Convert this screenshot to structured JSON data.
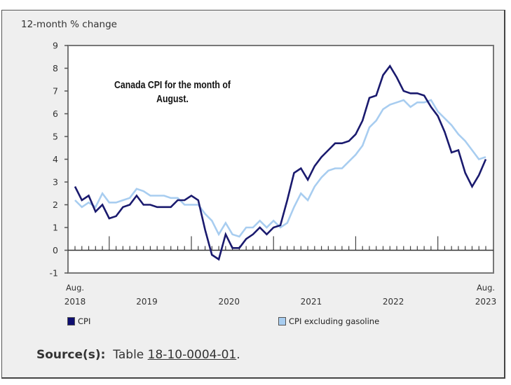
{
  "chart_data": {
    "type": "line",
    "title": "Canada CPI for the month of August.",
    "ylabel": "12-month % change",
    "xlabel": "",
    "ylim": [
      -1,
      9
    ],
    "yticks": [
      -1,
      0,
      1,
      2,
      3,
      4,
      5,
      6,
      7,
      8,
      9
    ],
    "grid": false,
    "legend_position": "bottom",
    "x_start": "Aug. 2018",
    "x_end": "Aug. 2023",
    "x_tick_labels": [
      {
        "month_index": 0,
        "line1": "Aug.",
        "line2": "2018"
      },
      {
        "month_index": 10.5,
        "line1": "",
        "line2": "2019"
      },
      {
        "month_index": 22.5,
        "line1": "",
        "line2": "2020"
      },
      {
        "month_index": 34.5,
        "line1": "",
        "line2": "2021"
      },
      {
        "month_index": 46.5,
        "line1": "",
        "line2": "2022"
      },
      {
        "month_index": 60,
        "line1": "Aug.",
        "line2": "2023"
      }
    ],
    "major_tick_month_indices": [
      5,
      17,
      29,
      41,
      53
    ],
    "series": [
      {
        "name": "CPI",
        "color": "#1a1a6e",
        "values": [
          2.8,
          2.2,
          2.4,
          1.7,
          2.0,
          1.4,
          1.5,
          1.9,
          2.0,
          2.4,
          2.0,
          2.0,
          1.9,
          1.9,
          1.9,
          2.2,
          2.2,
          2.4,
          2.2,
          0.9,
          -0.2,
          -0.4,
          0.7,
          0.1,
          0.1,
          0.5,
          0.7,
          1.0,
          0.7,
          1.0,
          1.1,
          2.2,
          3.4,
          3.6,
          3.1,
          3.7,
          4.1,
          4.4,
          4.7,
          4.7,
          4.8,
          5.1,
          5.7,
          6.7,
          6.8,
          7.7,
          8.1,
          7.6,
          7.0,
          6.9,
          6.9,
          6.8,
          6.3,
          5.9,
          5.2,
          4.3,
          4.4,
          3.4,
          2.8,
          3.3,
          4.0
        ]
      },
      {
        "name": "CPI excluding gasoline",
        "color": "#a8cdf0",
        "values": [
          2.2,
          1.9,
          2.1,
          1.9,
          2.5,
          2.1,
          2.1,
          2.2,
          2.3,
          2.7,
          2.6,
          2.4,
          2.4,
          2.4,
          2.3,
          2.3,
          2.0,
          2.0,
          2.0,
          1.6,
          1.3,
          0.7,
          1.2,
          0.7,
          0.6,
          1.0,
          1.0,
          1.3,
          1.0,
          1.3,
          1.0,
          1.2,
          1.9,
          2.5,
          2.2,
          2.8,
          3.2,
          3.5,
          3.6,
          3.6,
          3.9,
          4.2,
          4.6,
          5.4,
          5.7,
          6.2,
          6.4,
          6.5,
          6.6,
          6.3,
          6.5,
          6.5,
          6.6,
          6.1,
          5.8,
          5.5,
          5.1,
          4.8,
          4.4,
          4.0,
          4.1
        ]
      }
    ]
  },
  "annotation": {
    "line1": "Canada CPI for the month of",
    "line2": "August."
  },
  "axis": {
    "unit_label": "12-month % change"
  },
  "legend": [
    {
      "label": "CPI",
      "color": "#0d0d70"
    },
    {
      "label": "CPI excluding gasoline",
      "color": "#a8cdf0"
    }
  ],
  "source": {
    "label": "Source(s):",
    "prefix": "Table",
    "link_text": "18-10-0004-01",
    "suffix": "."
  }
}
